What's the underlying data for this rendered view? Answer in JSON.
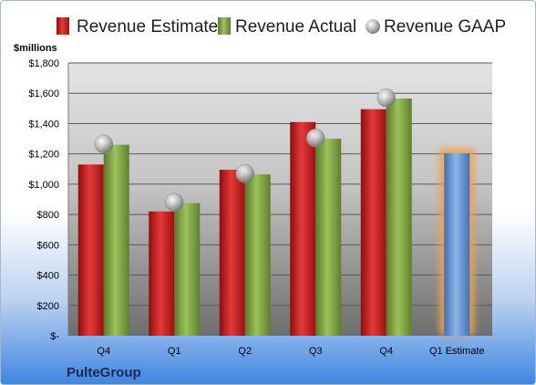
{
  "chart_data": {
    "type": "bar",
    "unit_label": "$millions",
    "categories": [
      "Q4",
      "Q1",
      "Q2",
      "Q3",
      "Q4",
      "Q1 Estimate"
    ],
    "series": [
      {
        "name": "Revenue Estimate",
        "kind": "bar",
        "color": "#cc1f1f",
        "values": [
          1130,
          820,
          1095,
          1410,
          1495,
          null
        ]
      },
      {
        "name": "Revenue Actual",
        "kind": "bar",
        "color": "#7fa244",
        "values": [
          1260,
          875,
          1065,
          1300,
          1565,
          null
        ]
      },
      {
        "name": "Revenue GAAP",
        "kind": "point",
        "color": "#b8b8b8",
        "values": [
          1265,
          880,
          1070,
          1305,
          1570,
          null
        ]
      },
      {
        "name": "",
        "kind": "bar-estimate",
        "color": "#6d9bd6",
        "values": [
          null,
          null,
          null,
          null,
          null,
          1205
        ]
      }
    ],
    "ylim": [
      0,
      1800
    ],
    "yticks": [
      0,
      200,
      400,
      600,
      800,
      1000,
      1200,
      1400,
      1600,
      1800
    ],
    "ytick_labels": [
      "$-",
      "$200",
      "$400",
      "$600",
      "$800",
      "$1,000",
      "$1,200",
      "$1,400",
      "$1,600",
      "$1,800"
    ],
    "grid": true,
    "legend_position": "top",
    "company": "PulteGroup"
  }
}
